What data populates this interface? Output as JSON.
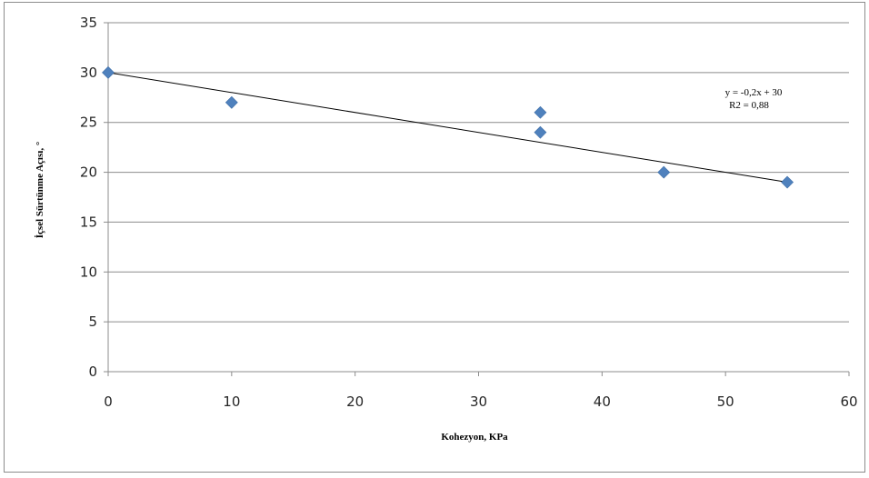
{
  "chart_data": {
    "type": "scatter",
    "title": "",
    "xlabel": "Kohezyon, KPa",
    "ylabel": "İçsel Sürtünme Açısı, °",
    "xlim": [
      0,
      60
    ],
    "ylim": [
      0,
      35
    ],
    "x_ticks": [
      0,
      10,
      20,
      30,
      40,
      50,
      60
    ],
    "y_ticks": [
      0,
      5,
      10,
      15,
      20,
      25,
      30,
      35
    ],
    "grid": {
      "horizontal": true,
      "vertical": false
    },
    "legend": "none",
    "series": [
      {
        "color": "#4f81bd",
        "marker": "diamond",
        "points": [
          {
            "x": 0,
            "y": 30
          },
          {
            "x": 10,
            "y": 27
          },
          {
            "x": 35,
            "y": 26
          },
          {
            "x": 35,
            "y": 24
          },
          {
            "x": 45,
            "y": 20
          },
          {
            "x": 55,
            "y": 19
          }
        ]
      }
    ],
    "trendline": {
      "color": "#000000",
      "slope": -0.2,
      "intercept": 30,
      "x_range": [
        0,
        55
      ],
      "equation_label": "y = -0,2x + 30",
      "r2_label": "R2 = 0,88"
    }
  }
}
